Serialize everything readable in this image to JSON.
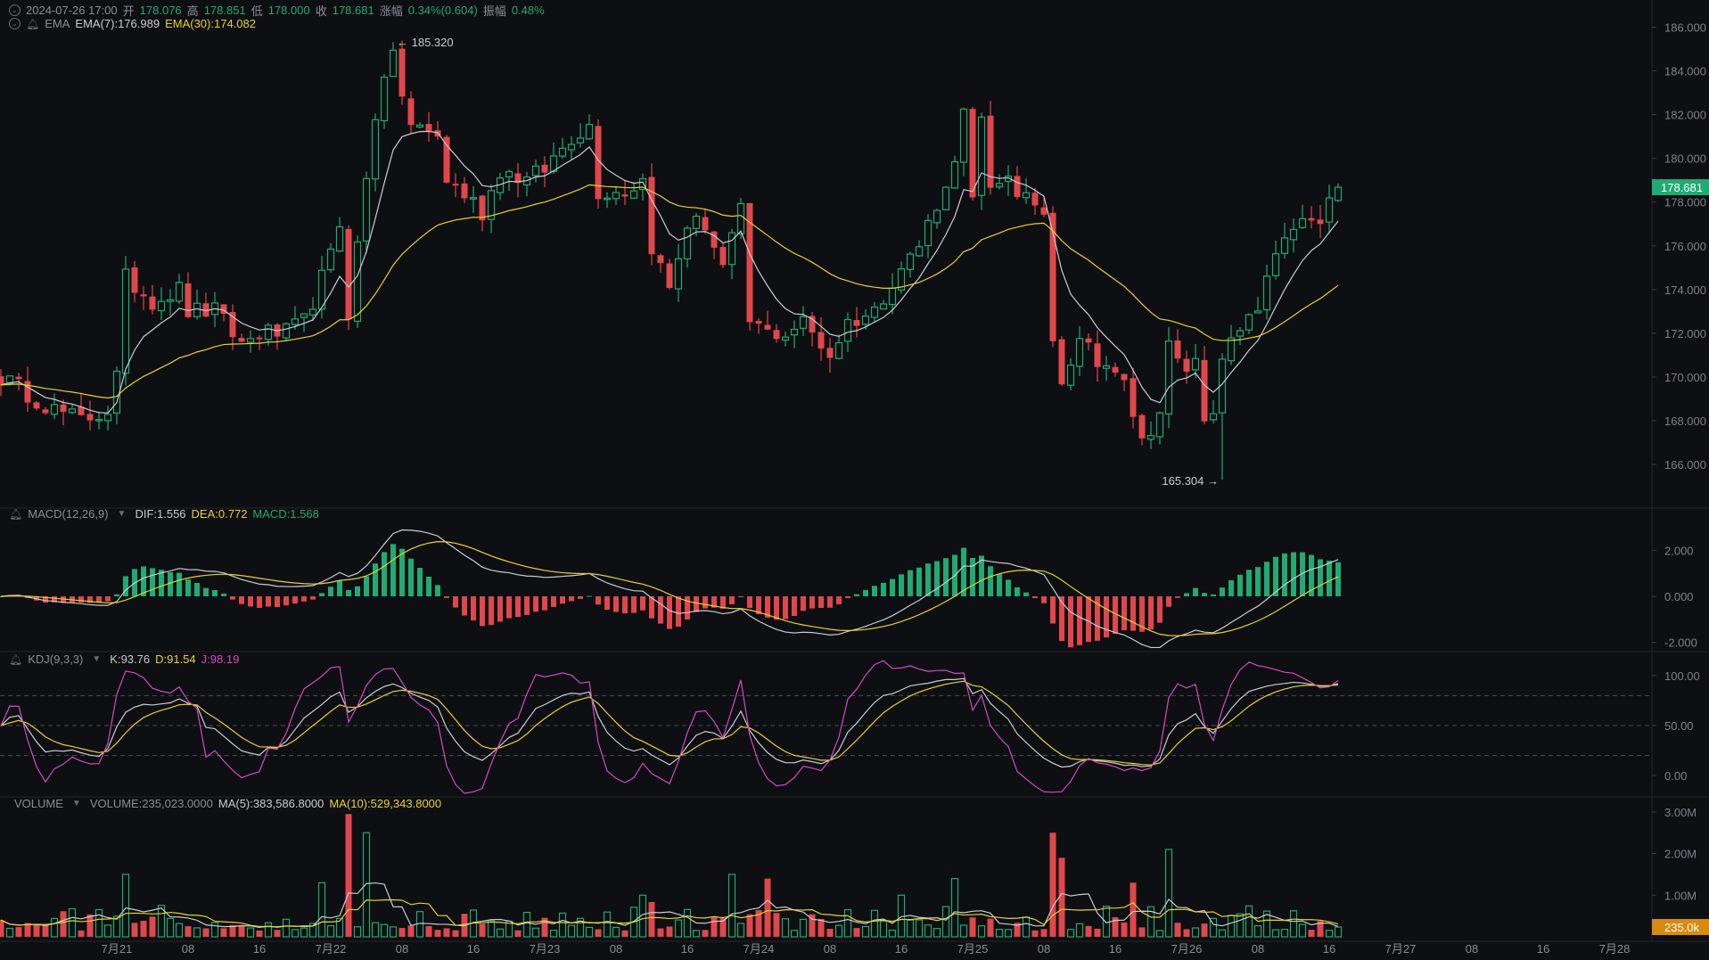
{
  "header": {
    "datetime": "2024-07-26 17:00",
    "open_label": "开",
    "open": "178.076",
    "high_label": "高",
    "high": "178.851",
    "low_label": "低",
    "low": "178.000",
    "close_label": "收",
    "close": "178.681",
    "change_label": "涨幅",
    "change": "0.34%(0.604)",
    "amplitude_label": "振幅",
    "amplitude": "0.48%"
  },
  "ema_legend": {
    "name": "EMA",
    "ema7": "EMA(7):176.989",
    "ema30": "EMA(30):174.082"
  },
  "macd_legend": {
    "name": "MACD(12,26,9)",
    "dif": "DIF:1.556",
    "dea": "DEA:0.772",
    "macd": "MACD:1.568"
  },
  "kdj_legend": {
    "name": "KDJ(9,3,3)",
    "k": "K:93.76",
    "d": "D:91.54",
    "j": "J:98.19"
  },
  "volume_legend": {
    "name": "VOLUME",
    "volume": "VOLUME:235,023.0000",
    "ma5": "MA(5):383,586.8000",
    "ma10": "MA(10):529,343.8000"
  },
  "colors": {
    "up": "#1fab74",
    "down": "#e0474c",
    "ema7": "#c9ccd3",
    "ema30": "#e6d329",
    "j": "#d24bc3",
    "background": "#0e0f12",
    "volume_tag": "#d98a10"
  },
  "chart_data": {
    "type": "candlestick",
    "interval": "1h",
    "price_axis": {
      "ticks": [
        "186.000",
        "184.000",
        "182.000",
        "180.000",
        "178.000",
        "176.000",
        "174.000",
        "172.000",
        "170.000",
        "168.000",
        "166.000"
      ],
      "range": [
        165,
        187
      ]
    },
    "current_price": "178.681",
    "max_annotation": "185.320",
    "min_annotation": "165.304",
    "max_index": 44,
    "max_value": 185.32,
    "min_index": 137,
    "min_value": 165.304,
    "last_candle": {
      "open": 178.076,
      "high": 178.851,
      "low": 178.0,
      "close": 178.681
    },
    "close_keypoints": [
      [
        0,
        170
      ],
      [
        2,
        169.5
      ],
      [
        6,
        168.5
      ],
      [
        9,
        168
      ],
      [
        12,
        168.5
      ],
      [
        13,
        170
      ],
      [
        14,
        174.5
      ],
      [
        17,
        173.5
      ],
      [
        20,
        174
      ],
      [
        21,
        173
      ],
      [
        24,
        173
      ],
      [
        27,
        171.5
      ],
      [
        29,
        172
      ],
      [
        32,
        172
      ],
      [
        34,
        172.5
      ],
      [
        37,
        175.5
      ],
      [
        38,
        177
      ],
      [
        39,
        173
      ],
      [
        40,
        176
      ],
      [
        42,
        182
      ],
      [
        43,
        184
      ],
      [
        44,
        184.5
      ],
      [
        45,
        183
      ],
      [
        46,
        181.5
      ],
      [
        49,
        181
      ],
      [
        50,
        179
      ],
      [
        53,
        178
      ],
      [
        54,
        177.5
      ],
      [
        56,
        179.5
      ],
      [
        59,
        179
      ],
      [
        61,
        179.5
      ],
      [
        64,
        181
      ],
      [
        66,
        181.5
      ],
      [
        67,
        178.5
      ],
      [
        70,
        178.5
      ],
      [
        72,
        179
      ],
      [
        73,
        176
      ],
      [
        75,
        174
      ],
      [
        77,
        177
      ],
      [
        79,
        177
      ],
      [
        81,
        175
      ],
      [
        83,
        177.5
      ],
      [
        84,
        172.5
      ],
      [
        86,
        172
      ],
      [
        88,
        172
      ],
      [
        90,
        172.5
      ],
      [
        93,
        171
      ],
      [
        95,
        172.5
      ],
      [
        98,
        173
      ],
      [
        100,
        174.5
      ],
      [
        103,
        176
      ],
      [
        105,
        178
      ],
      [
        106,
        178.5
      ],
      [
        108,
        182
      ],
      [
        109,
        178
      ],
      [
        110,
        181.5
      ],
      [
        111,
        178.5
      ],
      [
        113,
        179.5
      ],
      [
        114,
        178
      ],
      [
        116,
        178
      ],
      [
        117,
        177.5
      ],
      [
        118,
        172
      ],
      [
        119,
        170
      ],
      [
        121,
        171.5
      ],
      [
        122,
        172
      ],
      [
        123,
        170.5
      ],
      [
        125,
        170
      ],
      [
        126,
        170
      ],
      [
        127,
        168
      ],
      [
        128,
        167.5
      ],
      [
        130,
        168
      ],
      [
        131,
        171.5
      ],
      [
        132,
        170.5
      ],
      [
        134,
        170.5
      ],
      [
        135,
        168
      ],
      [
        136,
        168.5
      ],
      [
        137,
        171
      ],
      [
        139,
        172
      ],
      [
        141,
        173
      ],
      [
        142,
        174.5
      ],
      [
        144,
        176
      ],
      [
        145,
        177
      ],
      [
        148,
        177
      ],
      [
        149,
        178
      ],
      [
        150,
        178.681
      ]
    ],
    "candle_count": 151,
    "volume_spikes": [
      [
        14,
        1500000
      ],
      [
        36,
        1300000
      ],
      [
        39,
        2950000
      ],
      [
        41,
        2500000
      ],
      [
        72,
        1000000
      ],
      [
        82,
        1500000
      ],
      [
        86,
        1400000
      ],
      [
        101,
        1000000
      ],
      [
        107,
        1400000
      ],
      [
        118,
        2500000
      ],
      [
        119,
        1900000
      ],
      [
        127,
        1300000
      ],
      [
        131,
        2100000
      ],
      [
        150,
        235023
      ]
    ],
    "macd_axis": {
      "ticks": [
        "2.000",
        "0.000",
        "-2.000"
      ]
    },
    "kdj_axis": {
      "ticks": [
        "100.00",
        "50.00",
        "0.00"
      ],
      "dashed_levels": [
        80,
        50,
        20
      ]
    },
    "volume_axis": {
      "ticks": [
        "3.00M",
        "2.00M",
        "1.00M"
      ],
      "current": "235.0k"
    },
    "x_labels": [
      "7月21",
      "08",
      "16",
      "7月22",
      "08",
      "16",
      "7月23",
      "08",
      "16",
      "7月24",
      "08",
      "16",
      "7月25",
      "08",
      "16",
      "7月26",
      "08",
      "16",
      "7月27",
      "08",
      "16",
      "7月28"
    ]
  }
}
